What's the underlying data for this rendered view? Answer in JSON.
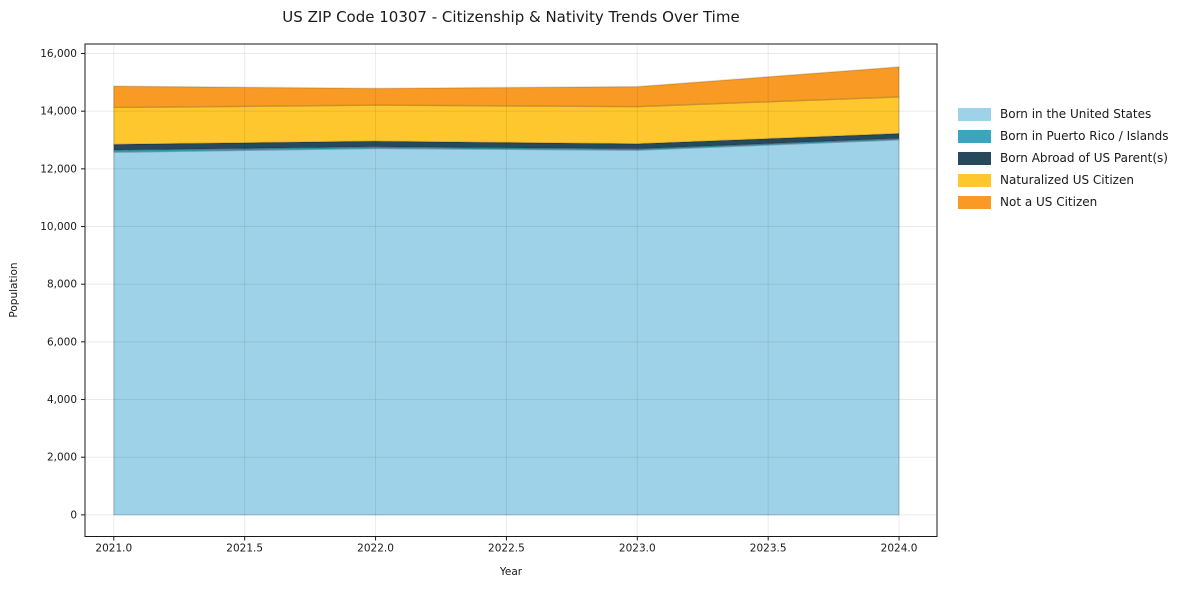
{
  "chart_data": {
    "type": "area",
    "stacked": true,
    "title": "US ZIP Code 10307 - Citizenship & Nativity Trends Over Time",
    "xlabel": "Year",
    "ylabel": "Population",
    "x": [
      2021,
      2022,
      2023,
      2024
    ],
    "series": [
      {
        "name": "Born in the United States",
        "color": "#9ed2e8",
        "values": [
          12580,
          12710,
          12650,
          13010
        ]
      },
      {
        "name": "Born in Puerto Rico / Islands",
        "color": "#3da4c0",
        "values": [
          70,
          55,
          45,
          45
        ]
      },
      {
        "name": "Born Abroad of US Parent(s)",
        "color": "#26495c",
        "values": [
          200,
          195,
          175,
          170
        ]
      },
      {
        "name": "Naturalized US Citizen",
        "color": "#fec72e",
        "values": [
          1280,
          1250,
          1290,
          1270
        ]
      },
      {
        "name": "Not a US Citizen",
        "color": "#f89a24",
        "values": [
          740,
          580,
          690,
          1040
        ]
      }
    ],
    "totals": [
      14870,
      14790,
      14850,
      15535
    ],
    "x_ticks": [
      "2021.0",
      "2021.5",
      "2022.0",
      "2022.5",
      "2023.0",
      "2023.5",
      "2024.0"
    ],
    "x_tick_values": [
      2021,
      2021.5,
      2022,
      2022.5,
      2023,
      2023.5,
      2024
    ],
    "y_ticks": [
      "0",
      "2,000",
      "4,000",
      "6,000",
      "8,000",
      "10,000",
      "12,000",
      "14,000",
      "16,000"
    ],
    "y_tick_values": [
      0,
      2000,
      4000,
      6000,
      8000,
      10000,
      12000,
      14000,
      16000
    ],
    "xlim": [
      2020.89,
      2024.145
    ],
    "ylim": [
      -750,
      16330
    ],
    "grid": true,
    "legend_position": "right-outside"
  }
}
